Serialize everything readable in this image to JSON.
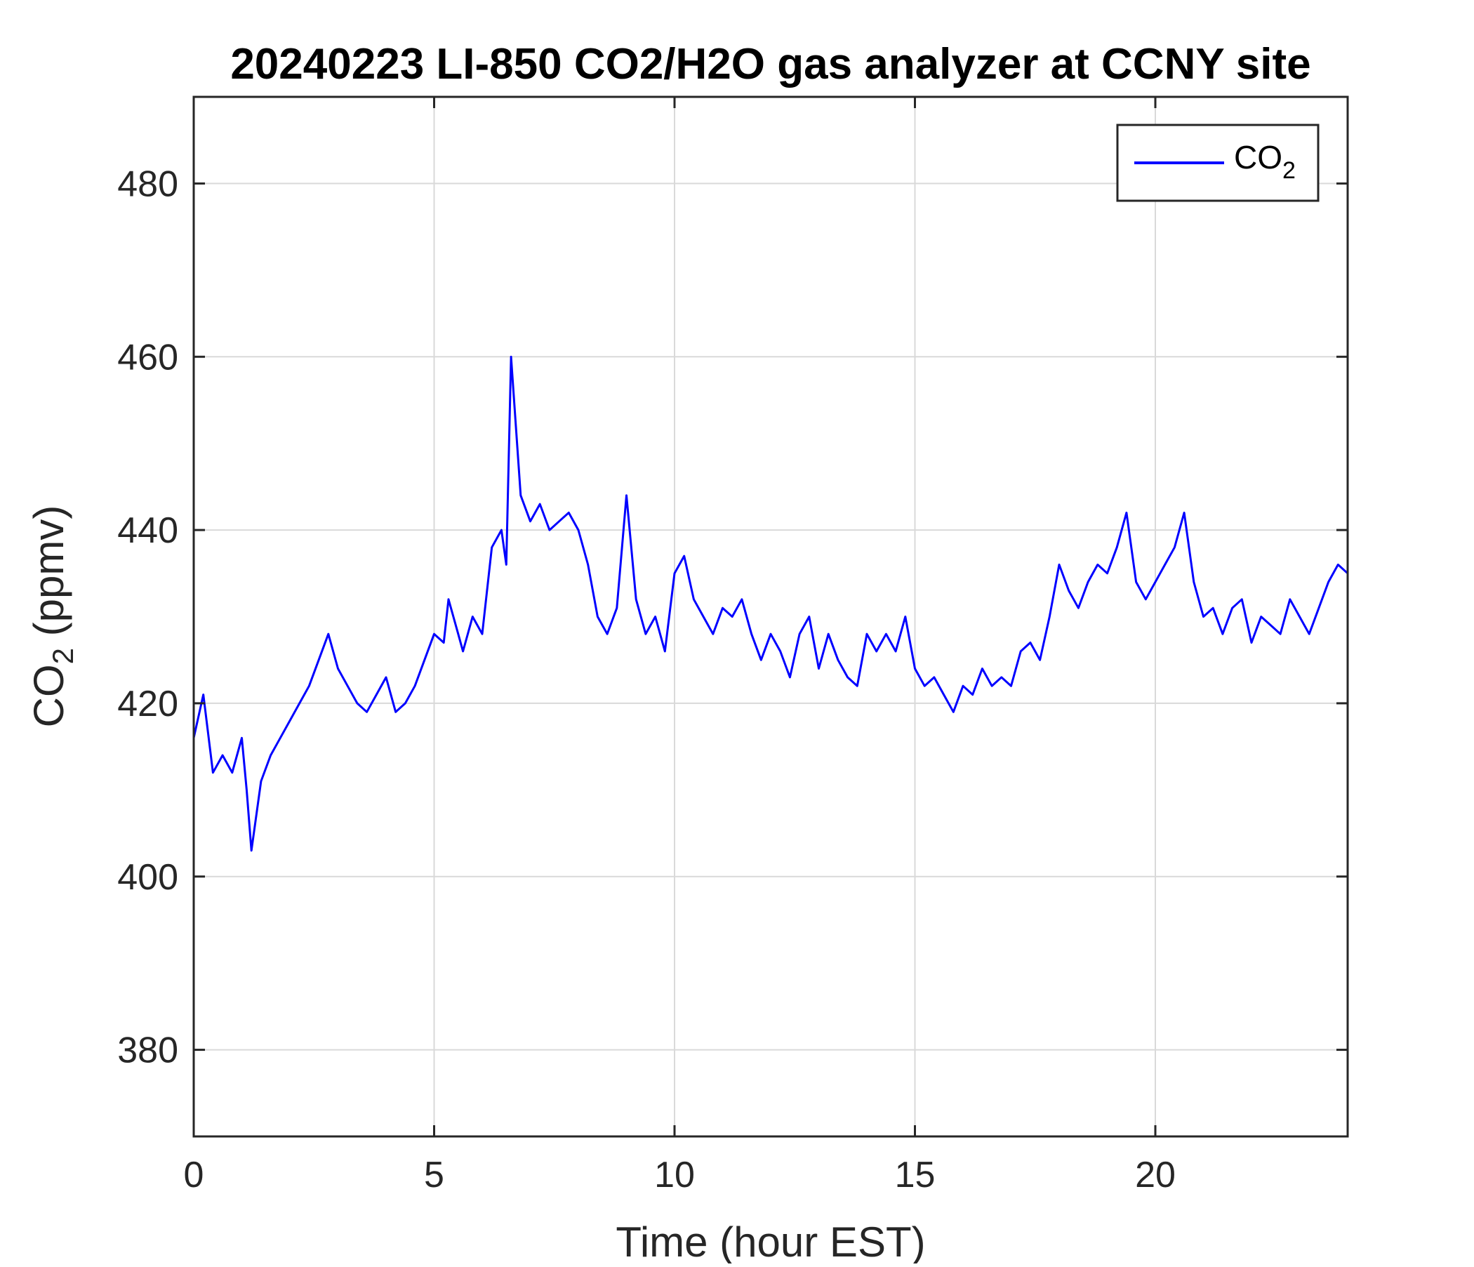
{
  "chart_data": {
    "type": "line",
    "title": "20240223 LI-850 CO2/H2O gas analyzer at CCNY site",
    "xlabel": "Time (hour EST)",
    "ylabel_main": "CO",
    "ylabel_sub": "2",
    "ylabel_units": " (ppmv)",
    "xlim": [
      0,
      24
    ],
    "ylim": [
      370,
      490
    ],
    "xticks": [
      0,
      5,
      10,
      15,
      20
    ],
    "yticks": [
      380,
      400,
      420,
      440,
      460,
      480
    ],
    "grid": true,
    "legend_position": "top-right",
    "legend": {
      "label_main": "CO",
      "label_sub": "2"
    },
    "series": [
      {
        "color": "#0000ff",
        "x": [
          0,
          0.2,
          0.4,
          0.6,
          0.8,
          1.0,
          1.1,
          1.2,
          1.4,
          1.6,
          1.8,
          2.0,
          2.2,
          2.4,
          2.6,
          2.8,
          3.0,
          3.2,
          3.4,
          3.6,
          3.8,
          4.0,
          4.2,
          4.4,
          4.6,
          4.8,
          5.0,
          5.2,
          5.3,
          5.5,
          5.6,
          5.8,
          6.0,
          6.2,
          6.4,
          6.5,
          6.6,
          6.8,
          7.0,
          7.2,
          7.4,
          7.6,
          7.8,
          8.0,
          8.2,
          8.4,
          8.6,
          8.8,
          9.0,
          9.2,
          9.4,
          9.6,
          9.8,
          10.0,
          10.2,
          10.4,
          10.6,
          10.8,
          11.0,
          11.2,
          11.4,
          11.6,
          11.8,
          12.0,
          12.2,
          12.4,
          12.6,
          12.8,
          13.0,
          13.2,
          13.4,
          13.6,
          13.8,
          14.0,
          14.2,
          14.4,
          14.6,
          14.8,
          15.0,
          15.2,
          15.4,
          15.6,
          15.8,
          16.0,
          16.2,
          16.4,
          16.6,
          16.8,
          17.0,
          17.2,
          17.4,
          17.6,
          17.8,
          18.0,
          18.2,
          18.4,
          18.6,
          18.8,
          19.0,
          19.2,
          19.4,
          19.6,
          19.8,
          20.0,
          20.2,
          20.4,
          20.6,
          20.8,
          21.0,
          21.2,
          21.4,
          21.6,
          21.8,
          22.0,
          22.2,
          22.4,
          22.6,
          22.8,
          23.0,
          23.2,
          23.4,
          23.6,
          23.8,
          24.0
        ],
        "values": [
          416,
          421,
          412,
          414,
          412,
          416,
          410,
          403,
          411,
          414,
          416,
          418,
          420,
          422,
          425,
          428,
          424,
          422,
          420,
          419,
          421,
          423,
          419,
          420,
          422,
          425,
          428,
          427,
          432,
          428,
          426,
          430,
          428,
          438,
          440,
          436,
          460,
          444,
          441,
          443,
          440,
          441,
          442,
          440,
          436,
          430,
          428,
          431,
          444,
          432,
          428,
          430,
          426,
          435,
          437,
          432,
          430,
          428,
          431,
          430,
          432,
          428,
          425,
          428,
          426,
          423,
          428,
          430,
          424,
          428,
          425,
          423,
          422,
          428,
          426,
          428,
          426,
          430,
          424,
          422,
          423,
          421,
          419,
          422,
          421,
          424,
          422,
          423,
          422,
          426,
          427,
          425,
          430,
          436,
          433,
          431,
          434,
          436,
          435,
          438,
          442,
          434,
          432,
          434,
          436,
          438,
          442,
          434,
          430,
          431,
          428,
          431,
          432,
          427,
          430,
          429,
          428,
          432,
          430,
          428,
          431,
          434,
          436,
          435
        ]
      }
    ]
  }
}
